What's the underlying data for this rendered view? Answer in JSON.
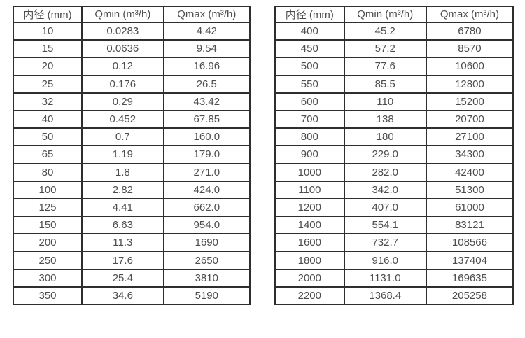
{
  "page": {
    "background": "#ffffff",
    "border_color": "#2e2e2e",
    "text_color": "#4d4d4d"
  },
  "tables": [
    {
      "name": "flow-range-table-small-diameters",
      "headers": [
        "内径 (mm)",
        "Qmin (m³/h)",
        "Qmax (m³/h)"
      ],
      "rows": [
        [
          "10",
          "0.0283",
          "4.42"
        ],
        [
          "15",
          "0.0636",
          "9.54"
        ],
        [
          "20",
          "0.12",
          "16.96"
        ],
        [
          "25",
          "0.176",
          "26.5"
        ],
        [
          "32",
          "0.29",
          "43.42"
        ],
        [
          "40",
          "0.452",
          "67.85"
        ],
        [
          "50",
          "0.7",
          "160.0"
        ],
        [
          "65",
          "1.19",
          "179.0"
        ],
        [
          "80",
          "1.8",
          "271.0"
        ],
        [
          "100",
          "2.82",
          "424.0"
        ],
        [
          "125",
          "4.41",
          "662.0"
        ],
        [
          "150",
          "6.63",
          "954.0"
        ],
        [
          "200",
          "11.3",
          "1690"
        ],
        [
          "250",
          "17.6",
          "2650"
        ],
        [
          "300",
          "25.4",
          "3810"
        ],
        [
          "350",
          "34.6",
          "5190"
        ]
      ]
    },
    {
      "name": "flow-range-table-large-diameters",
      "headers": [
        "内径 (mm)",
        "Qmin (m³/h)",
        "Qmax (m³/h)"
      ],
      "rows": [
        [
          "400",
          "45.2",
          "6780"
        ],
        [
          "450",
          "57.2",
          "8570"
        ],
        [
          "500",
          "77.6",
          "10600"
        ],
        [
          "550",
          "85.5",
          "12800"
        ],
        [
          "600",
          "110",
          "15200"
        ],
        [
          "700",
          "138",
          "20700"
        ],
        [
          "800",
          "180",
          "27100"
        ],
        [
          "900",
          "229.0",
          "34300"
        ],
        [
          "1000",
          "282.0",
          "42400"
        ],
        [
          "1100",
          "342.0",
          "51300"
        ],
        [
          "1200",
          "407.0",
          "61000"
        ],
        [
          "1400",
          "554.1",
          "83121"
        ],
        [
          "1600",
          "732.7",
          "108566"
        ],
        [
          "1800",
          "916.0",
          "137404"
        ],
        [
          "2000",
          "1131.0",
          "169635"
        ],
        [
          "2200",
          "1368.4",
          "205258"
        ]
      ]
    }
  ]
}
